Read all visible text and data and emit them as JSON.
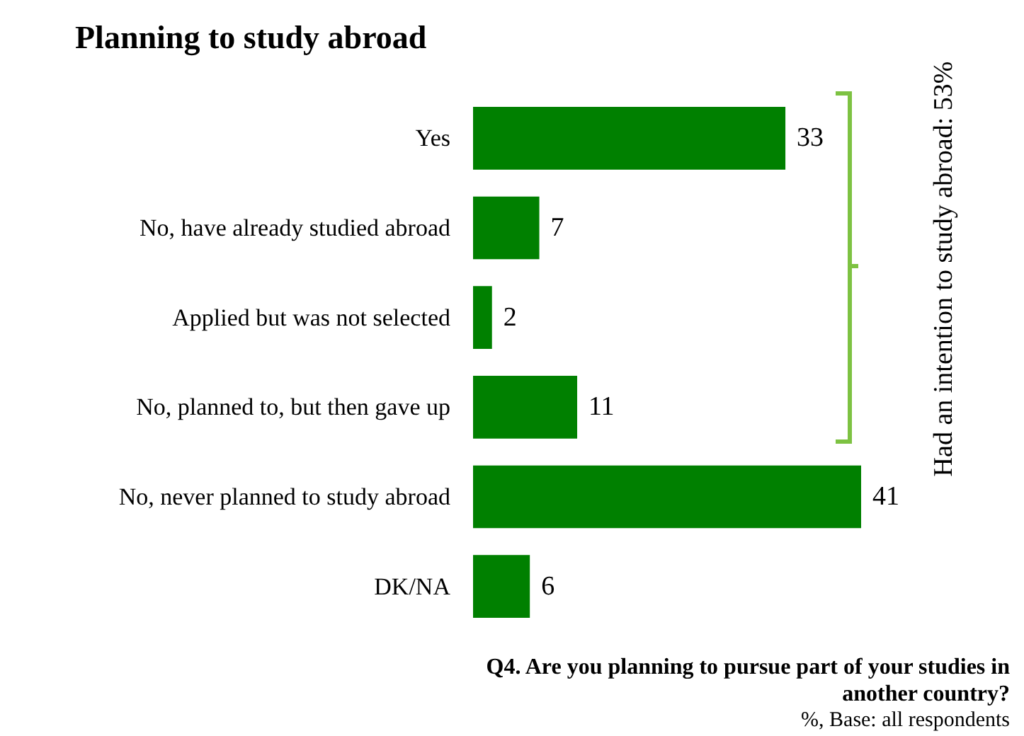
{
  "chart_data": {
    "type": "bar",
    "orientation": "horizontal",
    "title": "Planning to study abroad",
    "categories": [
      "Yes",
      "No, have already studied abroad",
      "Applied but was not selected",
      "No, planned to, but then gave up",
      "No, never planned to study abroad",
      "DK/NA"
    ],
    "values": [
      33,
      7,
      2,
      11,
      41,
      6
    ],
    "color": "#008000",
    "data_labels": true,
    "annotations": [
      "Had an intention to study abroad: 53%",
      "Q4. Are you planning to pursue part of your studies in another country?",
      "%, Base: all respondents"
    ]
  }
}
